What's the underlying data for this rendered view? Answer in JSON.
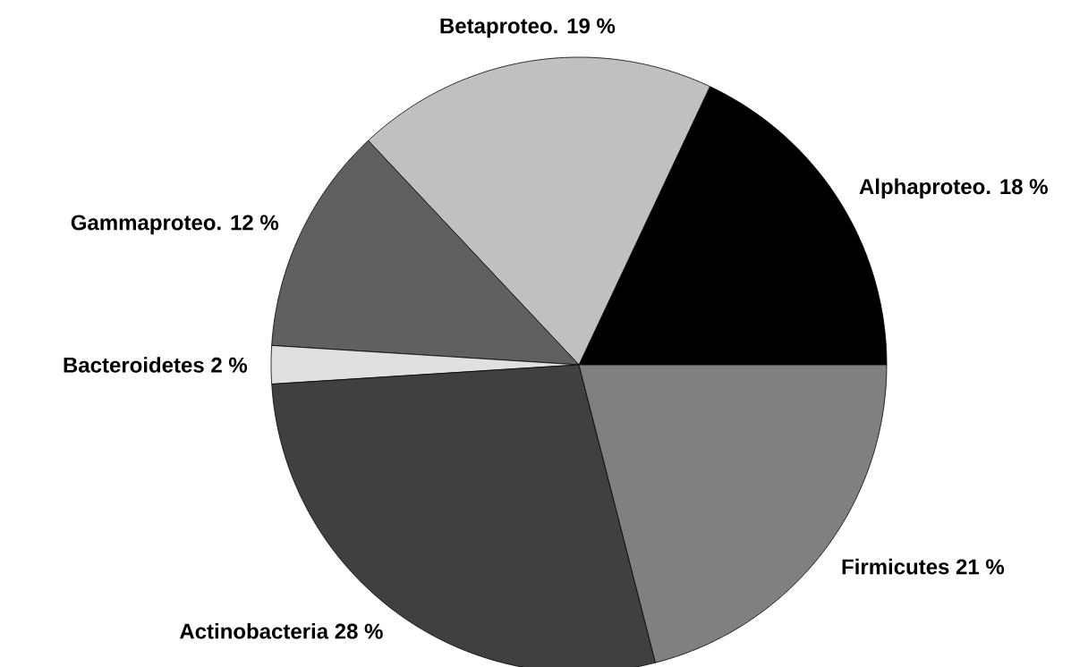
{
  "chart_data": {
    "type": "pie",
    "categories": [
      "Alphaproteo.",
      "Betaproteo.",
      "Gammaproteo.",
      "Bacteroidetes",
      "Actinobacteria",
      "Firmicutes"
    ],
    "values": [
      18,
      19,
      12,
      2,
      28,
      21
    ],
    "value_labels": [
      "18 %",
      "19 %",
      "12 %",
      "2 %",
      "28 %",
      "21 %"
    ],
    "colors": [
      "#000000",
      "#c0c0c0",
      "#606060",
      "#e0e0e0",
      "#404040",
      "#808080"
    ]
  }
}
